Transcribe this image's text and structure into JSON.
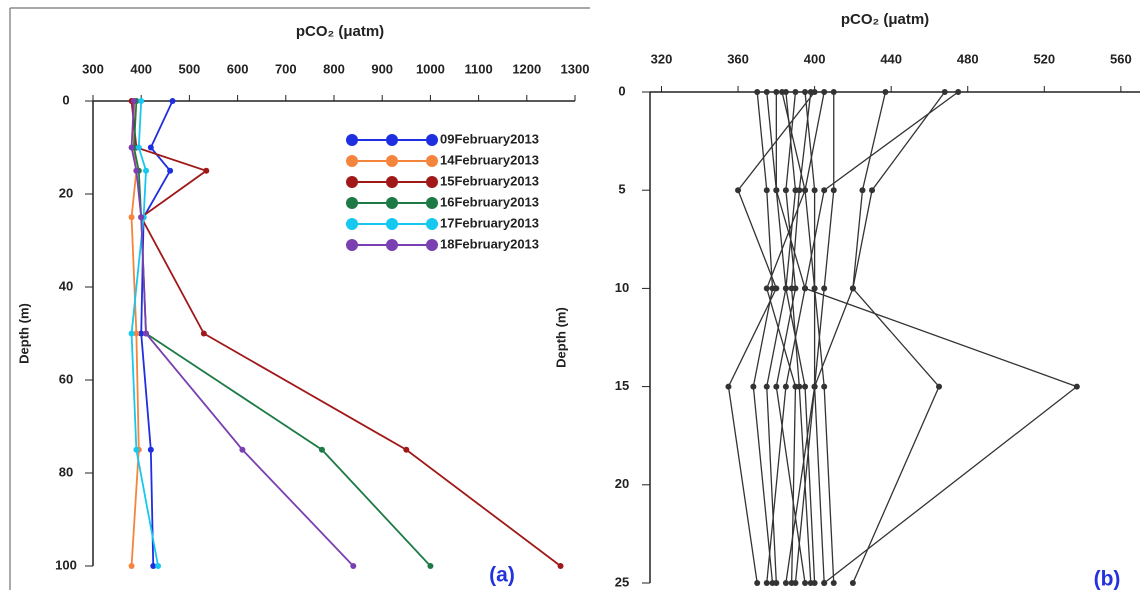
{
  "chart_data": [
    {
      "type": "line",
      "title": "pCO₂ (μatm)",
      "y_label": "Depth (m)",
      "annotation": "(a)",
      "xlim": [
        300,
        1300
      ],
      "xticks": [
        300,
        400,
        500,
        600,
        700,
        800,
        900,
        1000,
        1100,
        1200,
        1300
      ],
      "ylim": [
        0,
        100
      ],
      "yticks": [
        0,
        20,
        40,
        60,
        80,
        100
      ],
      "y_inverted": true,
      "x_axis_position": "top",
      "legend": "upper right",
      "depth": [
        0,
        10,
        15,
        25,
        50,
        75,
        100
      ],
      "series": [
        {
          "name": "09February2013",
          "color": "#1f2ee0",
          "values": [
            465,
            420,
            460,
            405,
            400,
            420,
            425
          ]
        },
        {
          "name": "14February2013",
          "color": "#f5843c",
          "values": [
            385,
            385,
            390,
            380,
            390,
            395,
            380
          ]
        },
        {
          "name": "15February2013",
          "color": "#a01818",
          "values": [
            380,
            390,
            535,
            400,
            530,
            950,
            1270
          ]
        },
        {
          "name": "16February2013",
          "color": "#1e7a45",
          "values": [
            390,
            385,
            395,
            400,
            410,
            775,
            1000
          ]
        },
        {
          "name": "17February2013",
          "color": "#16c8f0",
          "values": [
            400,
            395,
            410,
            405,
            380,
            390,
            435
          ]
        },
        {
          "name": "18February2013",
          "color": "#7a3fb0",
          "values": [
            385,
            380,
            390,
            400,
            410,
            610,
            840
          ]
        }
      ]
    },
    {
      "type": "line",
      "title": "pCO₂ (μatm)",
      "y_label": "Depth (m)",
      "annotation": "(b)",
      "xlim": [
        314,
        570
      ],
      "xticks": [
        320,
        360,
        400,
        440,
        480,
        520,
        560
      ],
      "ylim": [
        0,
        25
      ],
      "yticks": [
        0,
        5,
        10,
        15,
        20,
        25
      ],
      "y_inverted": true,
      "x_axis_position": "top",
      "color": "#333333",
      "depth": [
        0,
        5,
        10,
        15,
        25
      ],
      "series": [
        {
          "values": [
            475,
            405,
            395,
            537,
            405
          ]
        },
        {
          "values": [
            468,
            430,
            420,
            465,
            420
          ]
        },
        {
          "values": [
            437,
            425,
            420,
            400,
            385
          ]
        },
        {
          "values": [
            400,
            360,
            380,
            355,
            370
          ]
        },
        {
          "values": [
            370,
            375,
            378,
            368,
            378
          ]
        },
        {
          "values": [
            385,
            390,
            385,
            395,
            400
          ]
        },
        {
          "values": [
            395,
            400,
            400,
            405,
            410
          ]
        },
        {
          "values": [
            380,
            380,
            395,
            385,
            375
          ]
        },
        {
          "values": [
            390,
            385,
            390,
            380,
            395
          ]
        },
        {
          "values": [
            405,
            395,
            400,
            400,
            390
          ]
        },
        {
          "values": [
            375,
            380,
            385,
            375,
            380
          ]
        },
        {
          "values": [
            410,
            410,
            405,
            400,
            405
          ]
        },
        {
          "values": [
            398,
            392,
            388,
            392,
            398
          ]
        },
        {
          "values": [
            383,
            395,
            375,
            390,
            388
          ]
        }
      ]
    }
  ]
}
